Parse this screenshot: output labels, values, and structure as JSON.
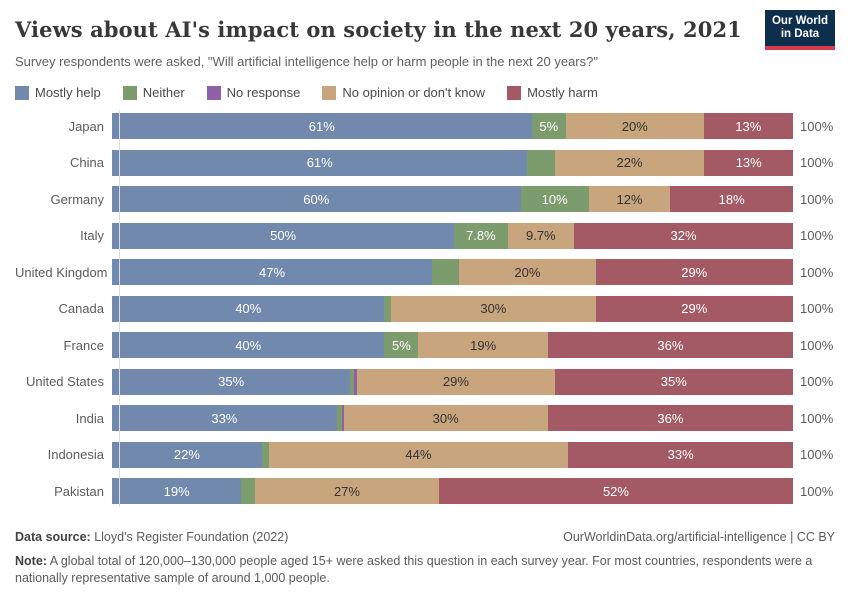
{
  "header": {
    "title": "Views about AI's impact on society in the next 20 years, 2021",
    "subtitle": "Survey respondents were asked, \"Will artificial intelligence help or harm people in the next 20 years?\"",
    "logo_line1": "Our World",
    "logo_line2": "in Data"
  },
  "colors": {
    "logo_bg": "#0d2e4d",
    "logo_accent": "#d73c4c",
    "axis": "#dcdcdc",
    "text_muted": "#5c5c5c"
  },
  "chart_data": {
    "type": "bar",
    "stacked": true,
    "orientation": "horizontal",
    "unit": "%",
    "xlim": [
      0,
      100
    ],
    "total_label": "100%",
    "grid": false,
    "legend_position": "top",
    "categories": [
      {
        "key": "help",
        "label": "Mostly help",
        "color": "#7189ad",
        "text": "#ffffff"
      },
      {
        "key": "neither",
        "label": "Neither",
        "color": "#7d9c6e",
        "text": "#ffffff"
      },
      {
        "key": "noresponse",
        "label": "No response",
        "color": "#9061a8",
        "text": "#ffffff"
      },
      {
        "key": "noop",
        "label": "No opinion or don't know",
        "color": "#c8a57c",
        "text": "#333333"
      },
      {
        "key": "harm",
        "label": "Mostly harm",
        "color": "#a45a64",
        "text": "#ffffff"
      }
    ],
    "rows": [
      {
        "country": "Japan",
        "segments": [
          {
            "key": "help",
            "value": 61,
            "label": "61%"
          },
          {
            "key": "neither",
            "value": 5,
            "label": "5%"
          },
          {
            "key": "noop",
            "value": 20,
            "label": "20%"
          },
          {
            "key": "harm",
            "value": 13,
            "label": "13%"
          }
        ]
      },
      {
        "country": "China",
        "segments": [
          {
            "key": "help",
            "value": 61,
            "label": "61%"
          },
          {
            "key": "neither",
            "value": 4,
            "label": ""
          },
          {
            "key": "noop",
            "value": 22,
            "label": "22%"
          },
          {
            "key": "harm",
            "value": 13,
            "label": "13%"
          }
        ]
      },
      {
        "country": "Germany",
        "segments": [
          {
            "key": "help",
            "value": 60,
            "label": "60%"
          },
          {
            "key": "neither",
            "value": 10,
            "label": "10%"
          },
          {
            "key": "noop",
            "value": 12,
            "label": "12%"
          },
          {
            "key": "harm",
            "value": 18,
            "label": "18%"
          }
        ]
      },
      {
        "country": "Italy",
        "segments": [
          {
            "key": "help",
            "value": 50,
            "label": "50%"
          },
          {
            "key": "neither",
            "value": 7.8,
            "label": "7.8%"
          },
          {
            "key": "noop",
            "value": 9.7,
            "label": "9.7%"
          },
          {
            "key": "harm",
            "value": 32,
            "label": "32%"
          }
        ]
      },
      {
        "country": "United Kingdom",
        "segments": [
          {
            "key": "help",
            "value": 47,
            "label": "47%"
          },
          {
            "key": "neither",
            "value": 4,
            "label": ""
          },
          {
            "key": "noop",
            "value": 20,
            "label": "20%"
          },
          {
            "key": "harm",
            "value": 29,
            "label": "29%"
          }
        ]
      },
      {
        "country": "Canada",
        "segments": [
          {
            "key": "help",
            "value": 40,
            "label": "40%"
          },
          {
            "key": "neither",
            "value": 1,
            "label": ""
          },
          {
            "key": "noop",
            "value": 30,
            "label": "30%"
          },
          {
            "key": "harm",
            "value": 29,
            "label": "29%"
          }
        ]
      },
      {
        "country": "France",
        "segments": [
          {
            "key": "help",
            "value": 40,
            "label": "40%"
          },
          {
            "key": "neither",
            "value": 5,
            "label": "5%"
          },
          {
            "key": "noop",
            "value": 19,
            "label": "19%"
          },
          {
            "key": "harm",
            "value": 36,
            "label": "36%"
          }
        ]
      },
      {
        "country": "United States",
        "segments": [
          {
            "key": "help",
            "value": 35,
            "label": "35%"
          },
          {
            "key": "neither",
            "value": 0.6,
            "label": ""
          },
          {
            "key": "noresponse",
            "value": 0.4,
            "label": ""
          },
          {
            "key": "noop",
            "value": 29,
            "label": "29%"
          },
          {
            "key": "harm",
            "value": 35,
            "label": "35%"
          }
        ]
      },
      {
        "country": "India",
        "segments": [
          {
            "key": "help",
            "value": 33,
            "label": "33%"
          },
          {
            "key": "neither",
            "value": 0.7,
            "label": ""
          },
          {
            "key": "noresponse",
            "value": 0.3,
            "label": ""
          },
          {
            "key": "noop",
            "value": 30,
            "label": "30%"
          },
          {
            "key": "harm",
            "value": 36,
            "label": "36%"
          }
        ]
      },
      {
        "country": "Indonesia",
        "segments": [
          {
            "key": "help",
            "value": 22,
            "label": "22%"
          },
          {
            "key": "neither",
            "value": 1,
            "label": ""
          },
          {
            "key": "noop",
            "value": 44,
            "label": "44%"
          },
          {
            "key": "harm",
            "value": 33,
            "label": "33%"
          }
        ]
      },
      {
        "country": "Pakistan",
        "segments": [
          {
            "key": "help",
            "value": 19,
            "label": "19%"
          },
          {
            "key": "neither",
            "value": 2,
            "label": ""
          },
          {
            "key": "noop",
            "value": 27,
            "label": "27%"
          },
          {
            "key": "harm",
            "value": 52,
            "label": "52%"
          }
        ]
      }
    ]
  },
  "footer": {
    "source_label": "Data source:",
    "source_value": " Lloyd's Register Foundation (2022)",
    "link": "OurWorldinData.org/artificial-intelligence | CC BY",
    "note_label": "Note:",
    "note_text": " A global total of 120,000–130,000 people aged 15+ were asked this question in each survey year. For most countries, respondents were a nationally representative sample of around 1,000 people."
  }
}
